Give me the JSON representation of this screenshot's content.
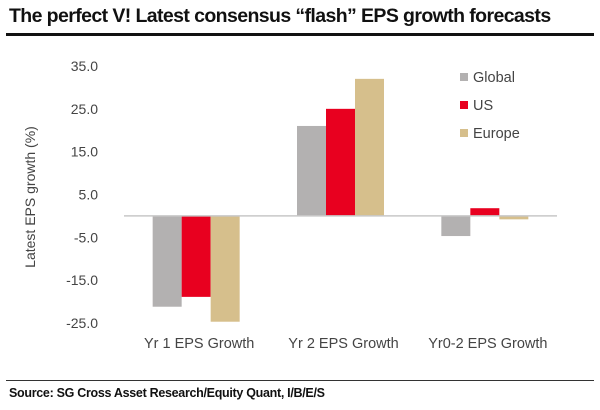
{
  "chart_data": {
    "type": "bar",
    "title": "The perfect V! Latest consensus “flash” EPS growth forecasts",
    "xlabel": "",
    "ylabel": "Latest EPS growth (%)",
    "ylim": [
      -25.0,
      35.0
    ],
    "yticks": [
      "35.0",
      "25.0",
      "15.0",
      "5.0",
      "-5.0",
      "-15.0",
      "-25.0"
    ],
    "ytick_values": [
      35,
      25,
      15,
      5,
      -5,
      -15,
      -25
    ],
    "grid": false,
    "legend_position": "top-right",
    "categories": [
      "Yr 1 EPS Growth",
      "Yr 2 EPS Growth",
      "Yr0-2 EPS Growth"
    ],
    "series": [
      {
        "name": "Global",
        "color": "#b3b1b1",
        "values": [
          -21.2,
          21.0,
          -4.7
        ]
      },
      {
        "name": "US",
        "color": "#e8001f",
        "values": [
          -18.9,
          25.0,
          1.8
        ]
      },
      {
        "name": "Europe",
        "color": "#d6bf8c",
        "values": [
          -24.7,
          32.0,
          -0.8
        ]
      }
    ]
  },
  "source": "Source: SG Cross Asset Research/Equity Quant, I/B/E/S"
}
